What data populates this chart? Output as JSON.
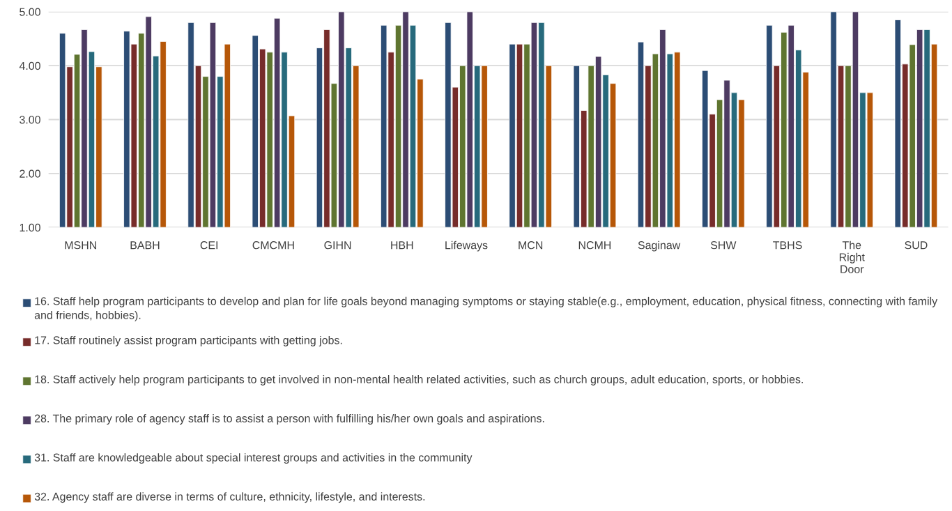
{
  "chart_data": {
    "type": "bar",
    "categories": [
      "MSHN",
      "BABH",
      "CEI",
      "CMCMH",
      "GIHN",
      "HBH",
      "Lifeways",
      "MCN",
      "NCMH",
      "Saginaw",
      "SHW",
      "TBHS",
      "The Right Door",
      "SUD"
    ],
    "series": [
      {
        "name": "16. Staff help program participants to develop and plan for life goals beyond managing symptoms or staying stable(e.g., employment, education, physical fitness, connecting with family and friends, hobbies).",
        "color": "#2c4d75",
        "values": [
          4.6,
          4.64,
          4.8,
          4.56,
          4.33,
          4.75,
          4.8,
          4.4,
          4.0,
          4.44,
          3.91,
          4.75,
          5.0,
          4.85
        ]
      },
      {
        "name": "17. Staff routinely assist program participants with getting jobs.",
        "color": "#772c2a",
        "values": [
          3.98,
          4.4,
          4.0,
          4.31,
          4.67,
          4.25,
          3.6,
          4.4,
          3.17,
          4.0,
          3.1,
          4.0,
          4.0,
          4.03
        ]
      },
      {
        "name": "18. Staff actively help program participants to get involved in non-mental health related activities, such as church groups, adult education, sports, or hobbies.",
        "color": "#5f7530",
        "values": [
          4.21,
          4.6,
          3.8,
          4.25,
          3.67,
          4.75,
          4.0,
          4.4,
          4.0,
          4.22,
          3.37,
          4.62,
          4.0,
          4.39
        ]
      },
      {
        "name": "28. The primary role of agency staff is to assist a person with fulfilling his/her own goals and aspirations.",
        "color": "#4d3b62",
        "values": [
          4.67,
          4.91,
          4.8,
          4.88,
          5.0,
          5.0,
          5.0,
          4.8,
          4.17,
          4.67,
          3.73,
          4.75,
          5.0,
          4.67
        ]
      },
      {
        "name": "31. Staff are knowledgeable about special interest groups and activities in the community",
        "color": "#276a7c",
        "values": [
          4.26,
          4.18,
          3.8,
          4.25,
          4.33,
          4.75,
          4.0,
          4.8,
          3.83,
          4.22,
          3.5,
          4.29,
          3.5,
          4.67
        ]
      },
      {
        "name": "32. Agency staff are diverse in terms of culture, ethnicity, lifestyle, and interests.",
        "color": "#b65708",
        "values": [
          3.98,
          4.45,
          4.4,
          3.07,
          4.0,
          3.75,
          4.0,
          4.0,
          3.67,
          4.25,
          3.37,
          3.88,
          3.5,
          4.4
        ]
      }
    ],
    "ylim": [
      1,
      5
    ],
    "yticks": [
      {
        "value": 1,
        "label": "1.00"
      },
      {
        "value": 2,
        "label": "2.00"
      },
      {
        "value": 3,
        "label": "3.00"
      },
      {
        "value": 4,
        "label": "4.00"
      },
      {
        "value": 5,
        "label": "5.00"
      }
    ],
    "grid": "y",
    "legend": "bottom"
  }
}
